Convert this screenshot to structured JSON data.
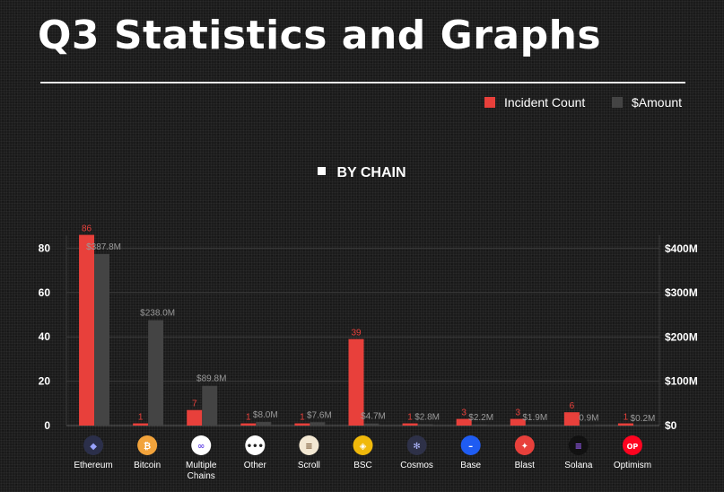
{
  "title": "Q3 Statistics and Graphs",
  "legend": {
    "incident_label": "Incident Count",
    "amount_label": "$Amount",
    "incident_color": "#e8403b",
    "amount_color": "#444444"
  },
  "chart_data": {
    "type": "bar",
    "title": "BY CHAIN",
    "categories": [
      "Ethereum",
      "Bitcoin",
      "Multiple Chains",
      "Other",
      "Scroll",
      "BSC",
      "Cosmos",
      "Base",
      "Blast",
      "Solana",
      "Optimism"
    ],
    "series": [
      {
        "name": "Incident Count",
        "axis": "left",
        "values": [
          86,
          1,
          7,
          1,
          1,
          39,
          1,
          3,
          3,
          6,
          1
        ]
      },
      {
        "name": "$Amount",
        "axis": "right",
        "values": [
          387.8,
          238.0,
          89.8,
          8.0,
          7.6,
          4.7,
          2.8,
          2.2,
          1.9,
          0.9,
          0.2
        ],
        "labels": [
          "$387.8M",
          "$238.0M",
          "$89.8M",
          "$8.0M",
          "$7.6M",
          "$4.7M",
          "$2.8M",
          "$2.2M",
          "$1.9M",
          "0.9M",
          "$0.2M"
        ]
      }
    ],
    "left_axis": {
      "ticks": [
        0,
        20,
        40,
        60,
        80
      ],
      "ylim": [
        0,
        90
      ]
    },
    "right_axis": {
      "ticks": [
        "$0",
        "$100M",
        "$200M",
        "$300M",
        "$400M"
      ],
      "tick_values": [
        0,
        100,
        200,
        300,
        400
      ],
      "ylim": [
        0,
        400
      ]
    },
    "icons": [
      "ethereum-icon",
      "bitcoin-icon",
      "multiple-chains-icon",
      "other-icon",
      "scroll-icon",
      "bsc-icon",
      "cosmos-icon",
      "base-icon",
      "blast-icon",
      "solana-icon",
      "optimism-icon"
    ]
  }
}
